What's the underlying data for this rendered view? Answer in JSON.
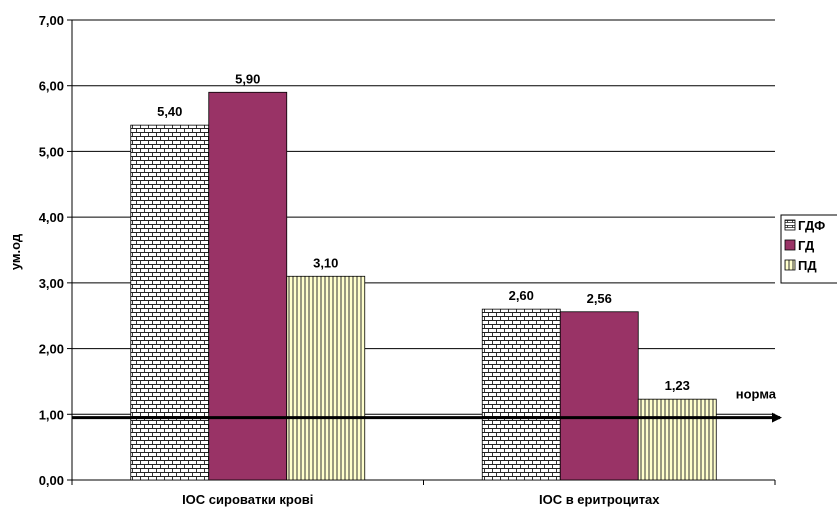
{
  "chart_data": {
    "type": "bar",
    "categories": [
      "ІОС сироватки крові",
      "ІОС в еритроцитах"
    ],
    "series": [
      {
        "name": "ГДФ",
        "values": [
          5.4,
          2.6
        ],
        "labels": [
          "5,40",
          "2,60"
        ],
        "pattern": "brick",
        "color": "#ffffff"
      },
      {
        "name": "ГД",
        "values": [
          5.9,
          2.56
        ],
        "labels": [
          "5,90",
          "2,56"
        ],
        "pattern": "solid",
        "color": "#993366"
      },
      {
        "name": "ПД",
        "values": [
          3.1,
          1.23
        ],
        "labels": [
          "3,10",
          "1,23"
        ],
        "pattern": "vertical-lines",
        "color": "#ffffcc"
      }
    ],
    "ylabel": "ум.од",
    "ylim": [
      0,
      7
    ],
    "yticks": [
      0,
      1,
      2,
      3,
      4,
      5,
      6,
      7
    ],
    "ytick_labels": [
      "0,00",
      "1,00",
      "2,00",
      "3,00",
      "4,00",
      "5,00",
      "6,00",
      "7,00"
    ],
    "grid": true,
    "legend_position": "right",
    "reference_line": {
      "label": "норма",
      "value": 0.95
    }
  }
}
